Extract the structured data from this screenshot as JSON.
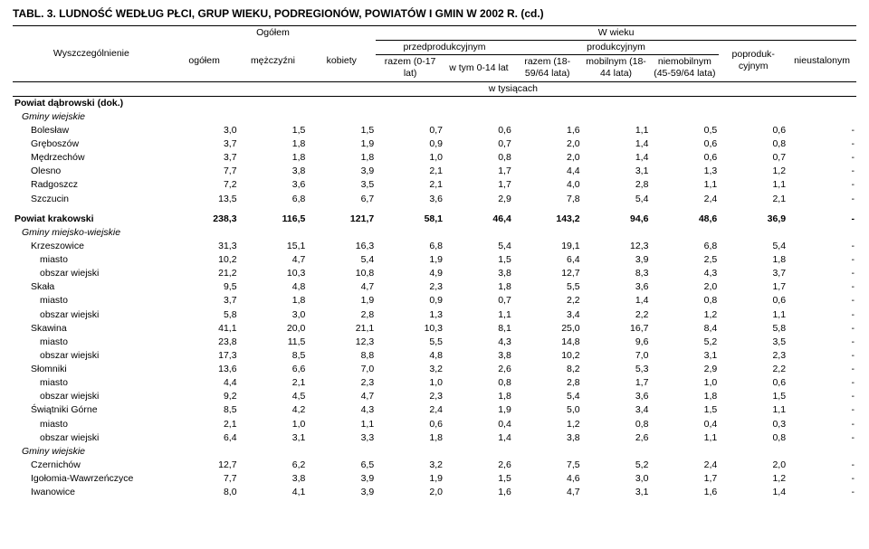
{
  "title": "TABL. 3. LUDNOŚĆ WEDŁUG PŁCI, GRUP WIEKU, PODREGIONÓW, POWIATÓW I GMIN W 2002 R. (cd.)",
  "header": {
    "wyszcz": "Wyszczególnienie",
    "ogolem_top": "Ogółem",
    "ogolem": "ogółem",
    "mezczyzni": "mężczyźni",
    "kobiety": "kobiety",
    "wwieku": "W wieku",
    "przedprod": "przedprodukcyjnym",
    "prod": "produkcyjnym",
    "razem017": "razem (0-17 lat)",
    "wtym014": "w tym 0-14 lat",
    "razem1859": "razem (18-59/64 lata)",
    "mobil": "mobilnym (18-44 lata)",
    "niemobil": "niemobil­nym (45-59/64 lata)",
    "poproduk": "poproduk­cyjnym",
    "nieustal": "nieustalo­nym",
    "wtys": "w tysiącach"
  },
  "sections": [
    {
      "label": "Powiat dąbrowski (dok.)",
      "bold": true,
      "indent": 0,
      "values": null
    },
    {
      "label": "Gminy wiejskie",
      "italic": true,
      "indent": 1,
      "values": null
    },
    {
      "label": "Bolesław",
      "indent": 2,
      "values": [
        "3,0",
        "1,5",
        "1,5",
        "0,7",
        "0,6",
        "1,6",
        "1,1",
        "0,5",
        "0,6",
        "-"
      ]
    },
    {
      "label": "Gręboszów",
      "indent": 2,
      "values": [
        "3,7",
        "1,8",
        "1,9",
        "0,9",
        "0,7",
        "2,0",
        "1,4",
        "0,6",
        "0,8",
        "-"
      ]
    },
    {
      "label": "Mędrzechów",
      "indent": 2,
      "values": [
        "3,7",
        "1,8",
        "1,8",
        "1,0",
        "0,8",
        "2,0",
        "1,4",
        "0,6",
        "0,7",
        "-"
      ]
    },
    {
      "label": "Olesno",
      "indent": 2,
      "values": [
        "7,7",
        "3,8",
        "3,9",
        "2,1",
        "1,7",
        "4,4",
        "3,1",
        "1,3",
        "1,2",
        "-"
      ]
    },
    {
      "label": "Radgoszcz",
      "indent": 2,
      "values": [
        "7,2",
        "3,6",
        "3,5",
        "2,1",
        "1,7",
        "4,0",
        "2,8",
        "1,1",
        "1,1",
        "-"
      ]
    },
    {
      "label": "Szczucin",
      "indent": 2,
      "values": [
        "13,5",
        "6,8",
        "6,7",
        "3,6",
        "2,9",
        "7,8",
        "5,4",
        "2,4",
        "2,1",
        "-"
      ]
    },
    {
      "label": "Powiat krakowski",
      "bold": true,
      "indent": 0,
      "padtop": true,
      "values": [
        "238,3",
        "116,5",
        "121,7",
        "58,1",
        "46,4",
        "143,2",
        "94,6",
        "48,6",
        "36,9",
        "-"
      ]
    },
    {
      "label": "Gminy miejsko-wiejskie",
      "italic": true,
      "indent": 1,
      "values": null
    },
    {
      "label": "Krzeszowice",
      "indent": 2,
      "values": [
        "31,3",
        "15,1",
        "16,3",
        "6,8",
        "5,4",
        "19,1",
        "12,3",
        "6,8",
        "5,4",
        "-"
      ]
    },
    {
      "label": "miasto",
      "indent": 3,
      "values": [
        "10,2",
        "4,7",
        "5,4",
        "1,9",
        "1,5",
        "6,4",
        "3,9",
        "2,5",
        "1,8",
        "-"
      ]
    },
    {
      "label": "obszar wiejski",
      "indent": 3,
      "values": [
        "21,2",
        "10,3",
        "10,8",
        "4,9",
        "3,8",
        "12,7",
        "8,3",
        "4,3",
        "3,7",
        "-"
      ]
    },
    {
      "label": "Skała",
      "indent": 2,
      "values": [
        "9,5",
        "4,8",
        "4,7",
        "2,3",
        "1,8",
        "5,5",
        "3,6",
        "2,0",
        "1,7",
        "-"
      ]
    },
    {
      "label": "miasto",
      "indent": 3,
      "values": [
        "3,7",
        "1,8",
        "1,9",
        "0,9",
        "0,7",
        "2,2",
        "1,4",
        "0,8",
        "0,6",
        "-"
      ]
    },
    {
      "label": "obszar wiejski",
      "indent": 3,
      "values": [
        "5,8",
        "3,0",
        "2,8",
        "1,3",
        "1,1",
        "3,4",
        "2,2",
        "1,2",
        "1,1",
        "-"
      ]
    },
    {
      "label": "Skawina",
      "indent": 2,
      "values": [
        "41,1",
        "20,0",
        "21,1",
        "10,3",
        "8,1",
        "25,0",
        "16,7",
        "8,4",
        "5,8",
        "-"
      ]
    },
    {
      "label": "miasto",
      "indent": 3,
      "values": [
        "23,8",
        "11,5",
        "12,3",
        "5,5",
        "4,3",
        "14,8",
        "9,6",
        "5,2",
        "3,5",
        "-"
      ]
    },
    {
      "label": "obszar wiejski",
      "indent": 3,
      "values": [
        "17,3",
        "8,5",
        "8,8",
        "4,8",
        "3,8",
        "10,2",
        "7,0",
        "3,1",
        "2,3",
        "-"
      ]
    },
    {
      "label": "Słomniki",
      "indent": 2,
      "values": [
        "13,6",
        "6,6",
        "7,0",
        "3,2",
        "2,6",
        "8,2",
        "5,3",
        "2,9",
        "2,2",
        "-"
      ]
    },
    {
      "label": "miasto",
      "indent": 3,
      "values": [
        "4,4",
        "2,1",
        "2,3",
        "1,0",
        "0,8",
        "2,8",
        "1,7",
        "1,0",
        "0,6",
        "-"
      ]
    },
    {
      "label": "obszar wiejski",
      "indent": 3,
      "values": [
        "9,2",
        "4,5",
        "4,7",
        "2,3",
        "1,8",
        "5,4",
        "3,6",
        "1,8",
        "1,5",
        "-"
      ]
    },
    {
      "label": "Świątniki Górne",
      "indent": 2,
      "values": [
        "8,5",
        "4,2",
        "4,3",
        "2,4",
        "1,9",
        "5,0",
        "3,4",
        "1,5",
        "1,1",
        "-"
      ]
    },
    {
      "label": "miasto",
      "indent": 3,
      "values": [
        "2,1",
        "1,0",
        "1,1",
        "0,6",
        "0,4",
        "1,2",
        "0,8",
        "0,4",
        "0,3",
        "-"
      ]
    },
    {
      "label": "obszar wiejski",
      "indent": 3,
      "values": [
        "6,4",
        "3,1",
        "3,3",
        "1,8",
        "1,4",
        "3,8",
        "2,6",
        "1,1",
        "0,8",
        "-"
      ]
    },
    {
      "label": "Gminy wiejskie",
      "italic": true,
      "indent": 1,
      "values": null
    },
    {
      "label": "Czernichów",
      "indent": 2,
      "values": [
        "12,7",
        "6,2",
        "6,5",
        "3,2",
        "2,6",
        "7,5",
        "5,2",
        "2,4",
        "2,0",
        "-"
      ]
    },
    {
      "label": "Igołomia-Wawrzeńczyce",
      "indent": 2,
      "values": [
        "7,7",
        "3,8",
        "3,9",
        "1,9",
        "1,5",
        "4,6",
        "3,0",
        "1,7",
        "1,2",
        "-"
      ]
    },
    {
      "label": "Iwanowice",
      "indent": 2,
      "values": [
        "8,0",
        "4,1",
        "3,9",
        "2,0",
        "1,6",
        "4,7",
        "3,1",
        "1,6",
        "1,4",
        "-"
      ]
    }
  ]
}
